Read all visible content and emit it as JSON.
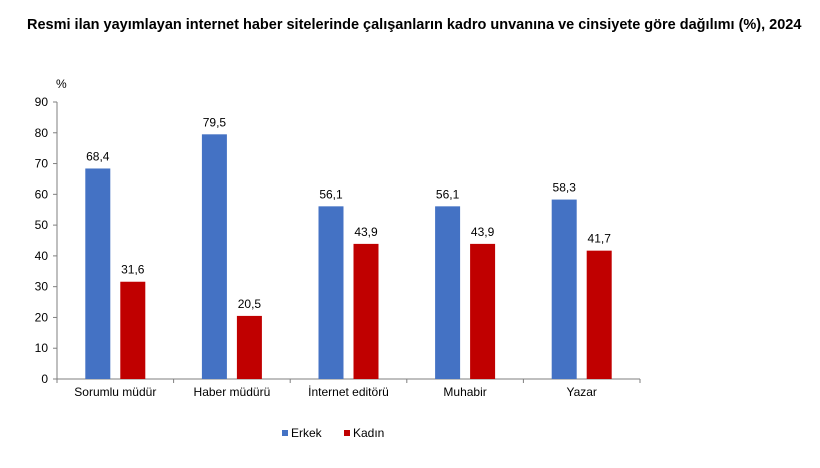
{
  "title": "Resmi ilan yayımlayan internet haber sitelerinde çalışanların kadro unvanına ve cinsiyete göre dağılımı (%), 2024",
  "chart_data": {
    "type": "bar",
    "title": "Resmi ilan yayımlayan internet haber sitelerinde çalışanların kadro unvanına ve cinsiyete göre dağılımı (%), 2024",
    "ylabel": "%",
    "xlabel": "",
    "ylim": [
      0,
      90
    ],
    "yticks": [
      0,
      10,
      20,
      30,
      40,
      50,
      60,
      70,
      80,
      90
    ],
    "categories": [
      "Sorumlu müdür",
      "Haber müdürü",
      "İnternet editörü",
      "Muhabir",
      "Yazar"
    ],
    "series": [
      {
        "name": "Erkek",
        "color": "#4472c4",
        "values": [
          68.4,
          79.5,
          56.1,
          56.1,
          58.3
        ],
        "labels": [
          "68,4",
          "79,5",
          "56,1",
          "56,1",
          "58,3"
        ]
      },
      {
        "name": "Kadın",
        "color": "#c00000",
        "values": [
          31.6,
          20.5,
          43.9,
          43.9,
          41.7
        ],
        "labels": [
          "31,6",
          "20,5",
          "43,9",
          "43,9",
          "41,7"
        ]
      }
    ],
    "grid": false,
    "legend": "bottom-center"
  }
}
